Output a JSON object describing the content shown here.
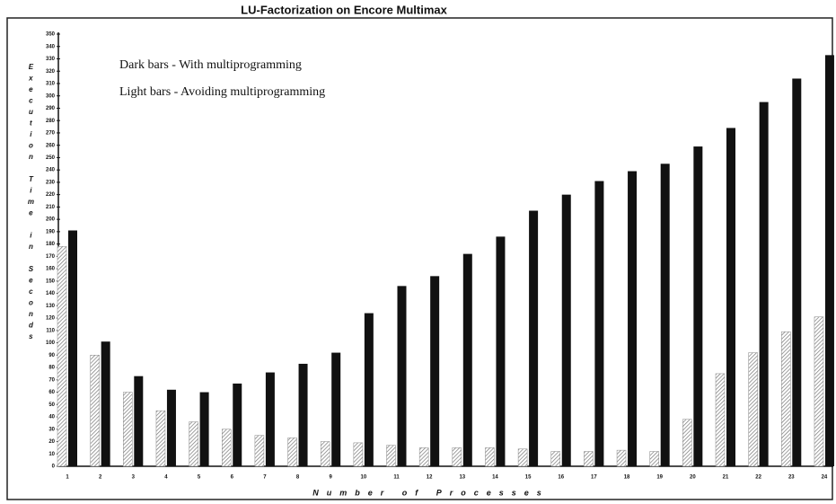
{
  "chart_data": {
    "type": "bar",
    "title": "LU-Factorization on Encore Multimax",
    "x_label": "Number of Processes",
    "y_label": "Execution Time in Seconds",
    "categories": [
      "1",
      "2",
      "3",
      "4",
      "5",
      "6",
      "7",
      "8",
      "9",
      "10",
      "11",
      "12",
      "13",
      "14",
      "15",
      "16",
      "17",
      "18",
      "19",
      "20",
      "21",
      "22",
      "23",
      "24"
    ],
    "series": [
      {
        "name": "Light bars - Avoiding multiprogramming",
        "color": "#d8d8d8",
        "values": [
          178,
          90,
          60,
          45,
          36,
          30,
          25,
          23,
          20,
          19,
          17,
          15,
          15,
          15,
          14,
          12,
          12,
          13,
          12,
          38,
          75,
          92,
          109,
          121
        ]
      },
      {
        "name": "Dark bars - With multiprogramming",
        "color": "#111111",
        "values": [
          191,
          101,
          73,
          62,
          60,
          67,
          76,
          83,
          92,
          124,
          146,
          154,
          172,
          186,
          207,
          220,
          231,
          239,
          245,
          259,
          274,
          295,
          314,
          333
        ]
      }
    ],
    "legend_order": [
      1,
      0
    ],
    "ylim": [
      0,
      350
    ],
    "yticks": [
      0,
      10,
      20,
      30,
      40,
      50,
      60,
      70,
      80,
      90,
      100,
      110,
      120,
      130,
      140,
      150,
      160,
      170,
      180,
      190,
      200,
      210,
      220,
      230,
      240,
      250,
      260,
      270,
      280,
      290,
      300,
      310,
      320,
      330,
      340,
      350
    ]
  }
}
